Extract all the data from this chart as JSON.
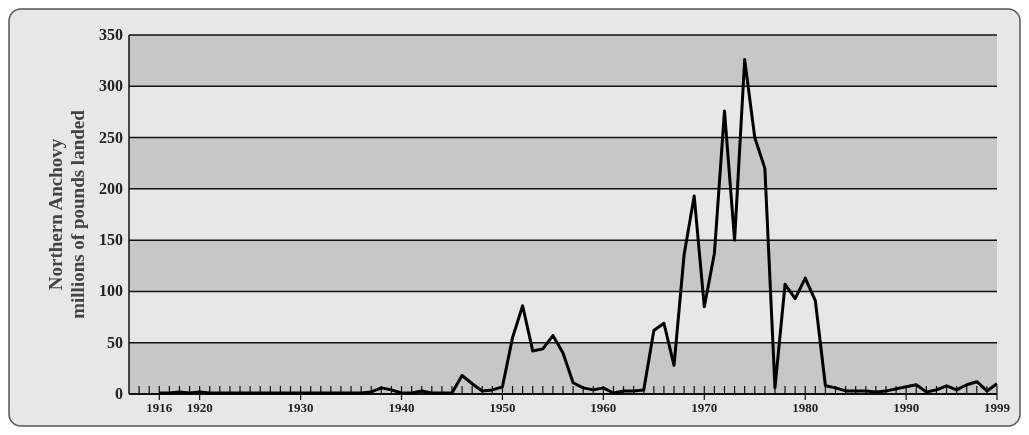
{
  "chart_data": {
    "type": "line",
    "ylabel": "Northern Anchovy\nmillions of pounds landed",
    "x": [
      1916,
      1917,
      1918,
      1919,
      1920,
      1921,
      1922,
      1923,
      1924,
      1925,
      1926,
      1927,
      1928,
      1929,
      1930,
      1931,
      1932,
      1933,
      1934,
      1935,
      1936,
      1937,
      1938,
      1939,
      1940,
      1941,
      1942,
      1943,
      1944,
      1945,
      1946,
      1947,
      1948,
      1949,
      1950,
      1951,
      1952,
      1953,
      1954,
      1955,
      1956,
      1957,
      1958,
      1959,
      1960,
      1961,
      1962,
      1963,
      1964,
      1965,
      1966,
      1967,
      1968,
      1969,
      1970,
      1971,
      1972,
      1973,
      1974,
      1975,
      1976,
      1977,
      1978,
      1979,
      1980,
      1981,
      1982,
      1983,
      1984,
      1985,
      1986,
      1987,
      1988,
      1989,
      1990,
      1991,
      1992,
      1993,
      1994,
      1995,
      1996,
      1997,
      1998,
      1999
    ],
    "series": [
      {
        "color": "#000000",
        "values": [
          1,
          1,
          2,
          1,
          2,
          1,
          1,
          1,
          1,
          1,
          1,
          1,
          1,
          1,
          1,
          1,
          1,
          1,
          1,
          1,
          1,
          2,
          6,
          4,
          1,
          1,
          3,
          1,
          1,
          1,
          18,
          10,
          3,
          4,
          7,
          55,
          86,
          42,
          44,
          57,
          40,
          11,
          6,
          4,
          6,
          1,
          3,
          3,
          4,
          62,
          69,
          28,
          136,
          193,
          85,
          137,
          276,
          150,
          326,
          250,
          220,
          6,
          107,
          93,
          113,
          91,
          8,
          6,
          3,
          3,
          3,
          2,
          3,
          5,
          7,
          9,
          2,
          4,
          8,
          4,
          9,
          12,
          3,
          10
        ]
      }
    ],
    "xlim": [
      1913,
      1999
    ],
    "xticks": [
      {
        "value": 1914,
        "label": null
      },
      {
        "value": 1915,
        "label": null
      },
      1916,
      {
        "value": 1917,
        "label": null
      },
      {
        "value": 1918,
        "label": null
      },
      {
        "value": 1919,
        "label": null
      },
      1920,
      {
        "value": 1921,
        "label": null
      },
      {
        "value": 1922,
        "label": null
      },
      {
        "value": 1923,
        "label": null
      },
      {
        "value": 1924,
        "label": null
      },
      {
        "value": 1925,
        "label": null
      },
      {
        "value": 1926,
        "label": null
      },
      {
        "value": 1927,
        "label": null
      },
      {
        "value": 1928,
        "label": null
      },
      {
        "value": 1929,
        "label": null
      },
      1930,
      {
        "value": 1931,
        "label": null
      },
      {
        "value": 1932,
        "label": null
      },
      {
        "value": 1933,
        "label": null
      },
      {
        "value": 1934,
        "label": null
      },
      {
        "value": 1935,
        "label": null
      },
      {
        "value": 1936,
        "label": null
      },
      {
        "value": 1937,
        "label": null
      },
      {
        "value": 1938,
        "label": null
      },
      {
        "value": 1939,
        "label": null
      },
      1940,
      {
        "value": 1941,
        "label": null
      },
      {
        "value": 1942,
        "label": null
      },
      {
        "value": 1943,
        "label": null
      },
      {
        "value": 1944,
        "label": null
      },
      {
        "value": 1945,
        "label": null
      },
      {
        "value": 1946,
        "label": null
      },
      {
        "value": 1947,
        "label": null
      },
      {
        "value": 1948,
        "label": null
      },
      {
        "value": 1949,
        "label": null
      },
      1950,
      {
        "value": 1951,
        "label": null
      },
      {
        "value": 1952,
        "label": null
      },
      {
        "value": 1953,
        "label": null
      },
      {
        "value": 1954,
        "label": null
      },
      {
        "value": 1955,
        "label": null
      },
      {
        "value": 1956,
        "label": null
      },
      {
        "value": 1957,
        "label": null
      },
      {
        "value": 1958,
        "label": null
      },
      {
        "value": 1959,
        "label": null
      },
      1960,
      {
        "value": 1961,
        "label": null
      },
      {
        "value": 1962,
        "label": null
      },
      {
        "value": 1963,
        "label": null
      },
      {
        "value": 1964,
        "label": null
      },
      {
        "value": 1965,
        "label": null
      },
      {
        "value": 1966,
        "label": null
      },
      {
        "value": 1967,
        "label": null
      },
      {
        "value": 1968,
        "label": null
      },
      {
        "value": 1969,
        "label": null
      },
      1970,
      {
        "value": 1971,
        "label": null
      },
      {
        "value": 1972,
        "label": null
      },
      {
        "value": 1973,
        "label": null
      },
      {
        "value": 1974,
        "label": null
      },
      {
        "value": 1975,
        "label": null
      },
      {
        "value": 1976,
        "label": null
      },
      {
        "value": 1977,
        "label": null
      },
      {
        "value": 1978,
        "label": null
      },
      {
        "value": 1979,
        "label": null
      },
      1980,
      {
        "value": 1981,
        "label": null
      },
      {
        "value": 1982,
        "label": null
      },
      {
        "value": 1983,
        "label": null
      },
      {
        "value": 1984,
        "label": null
      },
      {
        "value": 1985,
        "label": null
      },
      {
        "value": 1986,
        "label": null
      },
      {
        "value": 1987,
        "label": null
      },
      {
        "value": 1988,
        "label": null
      },
      {
        "value": 1989,
        "label": null
      },
      1990,
      {
        "value": 1991,
        "label": null
      },
      {
        "value": 1992,
        "label": null
      },
      {
        "value": 1993,
        "label": null
      },
      {
        "value": 1994,
        "label": null
      },
      {
        "value": 1995,
        "label": null
      },
      {
        "value": 1996,
        "label": null
      },
      {
        "value": 1997,
        "label": null
      },
      {
        "value": 1998,
        "label": null
      },
      1999
    ],
    "ylim": [
      0,
      350
    ],
    "yticks": [
      0,
      50,
      100,
      150,
      200,
      250,
      300,
      350
    ],
    "grid": "y",
    "line_style": "solid"
  }
}
